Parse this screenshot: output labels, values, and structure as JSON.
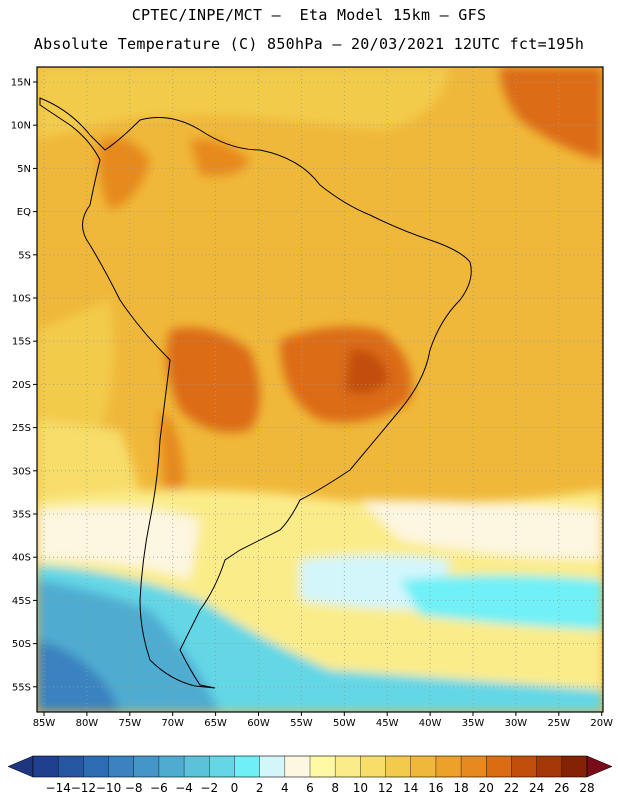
{
  "title_line1": "CPTEC/INPE/MCT –  Eta Model 15km – GFS",
  "title_line2": "Absolute Temperature (C) 850hPa – 20/03/2021 12UTC fct=195h",
  "lat_labels": [
    "15N",
    "10N",
    "5N",
    "EQ",
    "5S",
    "10S",
    "15S",
    "20S",
    "25S",
    "30S",
    "35S",
    "40S",
    "45S",
    "50S",
    "55S"
  ],
  "lon_labels": [
    "85W",
    "80W",
    "75W",
    "70W",
    "65W",
    "60W",
    "55W",
    "50W",
    "45W",
    "40W",
    "35W",
    "30W",
    "25W",
    "20W"
  ],
  "colorbar": {
    "labels": [
      "-14",
      "-12",
      "-10",
      "-8",
      "-6",
      "-4",
      "-2",
      "0",
      "2",
      "4",
      "6",
      "8",
      "10",
      "12",
      "14",
      "16",
      "18",
      "20",
      "22",
      "24",
      "26",
      "28"
    ],
    "colors": [
      "#1f3f8f",
      "#2657a0",
      "#2e6db3",
      "#3a82c0",
      "#4496c9",
      "#4facd1",
      "#5cc2da",
      "#63d7e6",
      "#6ff0f7",
      "#d3f6fb",
      "#fdf6e0",
      "#fff9a6",
      "#fbec8a",
      "#f7dd6a",
      "#f3cb4c",
      "#f0b83a",
      "#eca12b",
      "#e7891e",
      "#dc6c12",
      "#c24e0c",
      "#a53708",
      "#862204"
    ],
    "left_arrow_color": "#1e3580",
    "right_arrow_color": "#7a0c1a"
  }
}
